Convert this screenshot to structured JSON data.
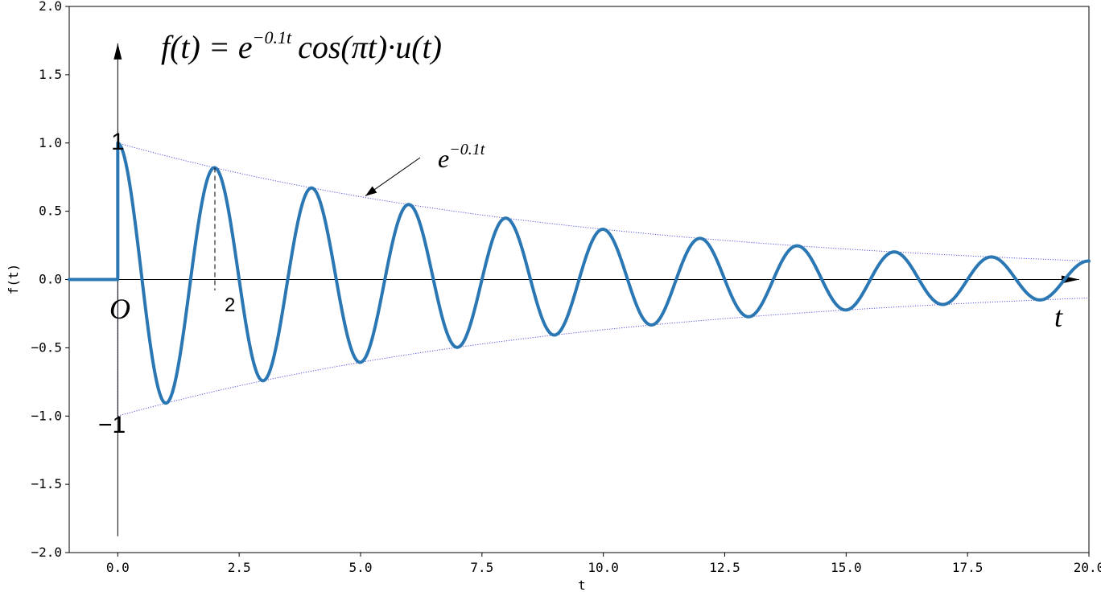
{
  "chart_data": {
    "type": "line",
    "xlabel": "t",
    "ylabel": "f(t)",
    "xlim": [
      -1,
      20
    ],
    "ylim": [
      -2.0,
      2.0
    ],
    "xticks": [
      "0.0",
      "2.5",
      "5.0",
      "7.5",
      "10.0",
      "12.5",
      "15.0",
      "17.5",
      "20.0"
    ],
    "yticks": [
      "-2.0",
      "-1.5",
      "-1.0",
      "-0.5",
      "0.0",
      "0.5",
      "1.0",
      "1.5",
      "2.0"
    ],
    "grid": false,
    "legend": "none",
    "series": [
      {
        "color": "#2a77b4",
        "function": "e^(-0.1t)·cos(πt)·u(t)",
        "x_start": -1,
        "x_end": 20
      },
      {
        "color": "#5555dd",
        "function": "e^(-0.1t)",
        "x_start": 0,
        "x_end": 20
      },
      {
        "color": "#5555dd",
        "function": "-e^(-0.1t)",
        "x_start": 0,
        "x_end": 20
      }
    ]
  },
  "annotations": {
    "formula_lhs": "f(t) = e",
    "formula_exp": "−0.1t",
    "formula_rhs": "cos(πt)·u(t)",
    "envelope_base": "e",
    "envelope_exp": "−0.1t",
    "origin_label": "O",
    "t_label": "t",
    "one_label": "1",
    "minus_one_label": "−1",
    "two_label": "2"
  },
  "colors": {
    "signal": "#2a77b4",
    "envelope": "#5555dd",
    "axes": "#000000"
  }
}
